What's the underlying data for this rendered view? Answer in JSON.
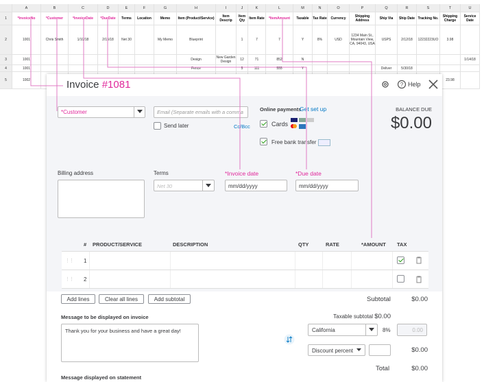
{
  "spreadsheet": {
    "columns": [
      "A",
      "B",
      "C",
      "D",
      "E",
      "F",
      "G",
      "H",
      "I",
      "J",
      "K",
      "L",
      "M",
      "N",
      "O",
      "P",
      "Q",
      "R",
      "S",
      "T",
      "U"
    ],
    "header": {
      "num": "1",
      "cells": {
        "A": "*InvoiceNo",
        "B": "*Customer",
        "C": "*InvoiceDate",
        "D": "*DueDate",
        "E": "Terms",
        "F": "Location",
        "G": "Memo",
        "H": "Item (Product/Service)",
        "I": "Item Descrip",
        "J": "Item Qty",
        "K": "Item Rate",
        "L": "*ItemAmount",
        "M": "Taxable",
        "N": "Tax Rate",
        "O": "Currency",
        "P": "Shipping Address",
        "Q": "Ship Via",
        "R": "Ship Date",
        "S": "Tracking No.",
        "T": "Shipping Charge",
        "U": "Service Date"
      }
    },
    "rows": [
      {
        "num": "2",
        "cells": {
          "A": "1001",
          "B": "Chris Smith",
          "C": "1/10/18",
          "D": "2/15/18",
          "E": "Net 30",
          "G": "My Memo",
          "H": "Blueprint",
          "J": "1",
          "K": "7",
          "L": "7",
          "M": "Y",
          "N": "8%",
          "O": "USD",
          "P": "1234 Main St., Mountain View, CA, 94043, USA",
          "Q": "USPS",
          "R": "2/12/18",
          "S": "12232223UO",
          "T": "3.98"
        }
      },
      {
        "num": "3",
        "cells": {
          "A": "1001",
          "H": "Design",
          "I": "New Garden Design",
          "J": "12",
          "K": "71",
          "L": "852",
          "M": "N",
          "U": "1/14/18"
        }
      },
      {
        "num": "4",
        "cells": {
          "A": "1001",
          "H": "Fence",
          "J": "5",
          "K": "111",
          "L": "555",
          "M": "Y",
          "Q": "Deliver",
          "R": "5/30/18"
        }
      },
      {
        "num": "5",
        "cells": {
          "A": "1002",
          "T": "23.98"
        }
      }
    ]
  },
  "invoice": {
    "title": "Invoice",
    "number": "#1081",
    "help": "Help",
    "customer": "*Customer",
    "email": "Email (Separate emails with a comma",
    "send_later": "Send later",
    "cc_bcc": "Cc/Bcc",
    "online_payments": "Online payments",
    "get_set_up": "Get set up",
    "cards": "Cards",
    "bank_transfer": "Free bank transfer",
    "balance_due_label": "BALANCE DUE",
    "balance_due": "$0.00",
    "billing_address": "Billing address",
    "terms_label": "Terms",
    "terms_value": "Net 30",
    "invoice_date_label": "*Invoice date",
    "invoice_date": "mm/dd/yyyy",
    "due_date_label": "*Due date",
    "due_date": "mm/dd/yyyy",
    "table": {
      "headers": [
        "#",
        "PRODUCT/SERVICE",
        "DESCRIPTION",
        "QTY",
        "RATE",
        "*AMOUNT",
        "TAX"
      ],
      "rows": [
        "1",
        "2"
      ]
    },
    "buttons": [
      "Add lines",
      "Clear all lines",
      "Add subtotal"
    ],
    "subtotal_label": "Subtotal",
    "subtotal": "$0.00",
    "message_label": "Message to be displayed on invoice",
    "message": "Thank you for your business and have a great day!",
    "taxable_subtotal_label": "Taxable subtotal",
    "taxable_subtotal": "$0.00",
    "tax_region": "California",
    "tax_rate": "8%",
    "tax_amount": "0.00",
    "discount": "Discount percent",
    "discount_amount": "$0.00",
    "total_label": "Total",
    "total": "$0.00",
    "statement_label": "Message displayed on statement"
  }
}
